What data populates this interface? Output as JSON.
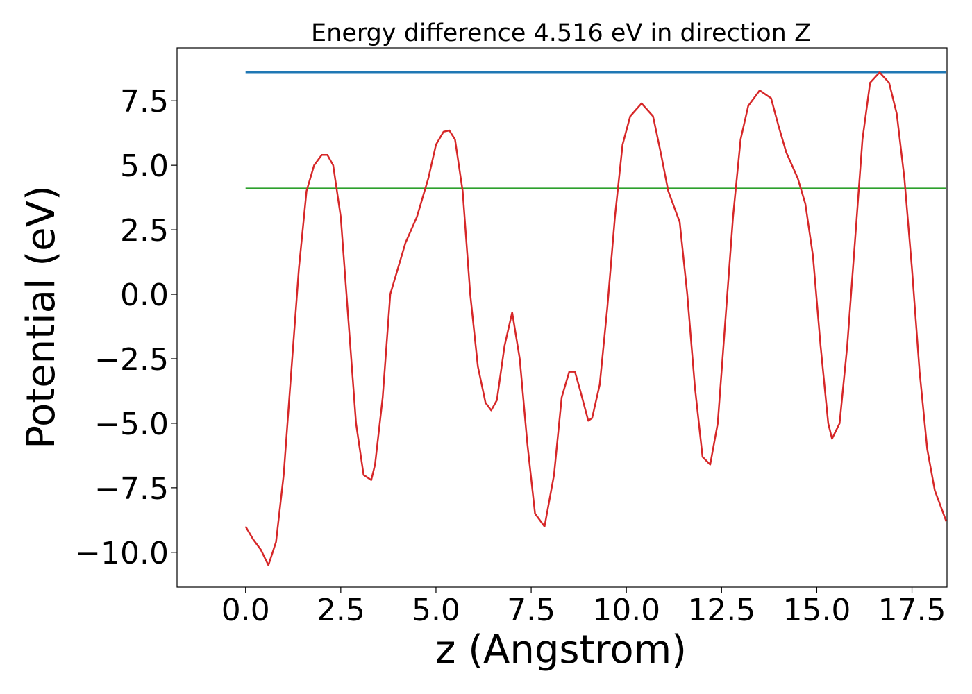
{
  "chart_data": {
    "type": "line",
    "title": "Energy difference 4.516 eV in direction Z",
    "xlabel": "z (Angstrom)",
    "ylabel": "Potential (eV)",
    "xlim": [
      -1.8,
      18.42
    ],
    "ylim": [
      -11.35,
      9.55
    ],
    "xticks": [
      0.0,
      2.5,
      5.0,
      7.5,
      10.0,
      12.5,
      15.0,
      17.5
    ],
    "xtick_labels": [
      "0.0",
      "2.5",
      "5.0",
      "7.5",
      "10.0",
      "12.5",
      "15.0",
      "17.5"
    ],
    "yticks": [
      7.5,
      5.0,
      2.5,
      0.0,
      -2.5,
      -5.0,
      -7.5,
      -10.0
    ],
    "ytick_labels": [
      "7.5",
      "5.0",
      "2.5",
      "0.0",
      "−2.5",
      "−5.0",
      "−7.5",
      "−10.0"
    ],
    "grid": false,
    "series": [
      {
        "color": "#1f77b4",
        "x": [
          0.0,
          18.4
        ],
        "y": [
          8.6,
          8.6
        ]
      },
      {
        "color": "#2ca02c",
        "x": [
          0.0,
          18.4
        ],
        "y": [
          4.1,
          4.1
        ]
      },
      {
        "color": "#d62728",
        "x": [
          0.0,
          0.2,
          0.4,
          0.6,
          0.8,
          1.0,
          1.2,
          1.4,
          1.6,
          1.8,
          2.0,
          2.15,
          2.3,
          2.5,
          2.7,
          2.9,
          3.1,
          3.3,
          3.4,
          3.6,
          3.8,
          4.0,
          4.2,
          4.5,
          4.8,
          5.0,
          5.2,
          5.35,
          5.5,
          5.7,
          5.9,
          6.1,
          6.3,
          6.45,
          6.6,
          6.8,
          7.0,
          7.2,
          7.4,
          7.6,
          7.85,
          8.1,
          8.3,
          8.5,
          8.65,
          8.8,
          9.0,
          9.1,
          9.3,
          9.5,
          9.7,
          9.9,
          10.1,
          10.4,
          10.7,
          10.9,
          11.1,
          11.4,
          11.6,
          11.8,
          12.0,
          12.2,
          12.4,
          12.6,
          12.8,
          13.0,
          13.2,
          13.5,
          13.8,
          14.0,
          14.2,
          14.5,
          14.7,
          14.9,
          15.1,
          15.3,
          15.4,
          15.6,
          15.8,
          16.0,
          16.2,
          16.4,
          16.65,
          16.9,
          17.1,
          17.3,
          17.5,
          17.7,
          17.9,
          18.1,
          18.4
        ],
        "y": [
          -9.0,
          -9.5,
          -9.9,
          -10.5,
          -9.6,
          -7.0,
          -3.0,
          1.0,
          4.0,
          5.0,
          5.4,
          5.4,
          5.0,
          3.0,
          -1.0,
          -5.0,
          -7.0,
          -7.2,
          -6.6,
          -4.0,
          0.0,
          1.0,
          2.0,
          3.0,
          4.5,
          5.8,
          6.3,
          6.35,
          6.0,
          4.0,
          0.0,
          -2.8,
          -4.2,
          -4.5,
          -4.1,
          -2.0,
          -0.7,
          -2.5,
          -5.8,
          -8.5,
          -9.0,
          -7.0,
          -4.0,
          -3.0,
          -3.0,
          -3.8,
          -4.9,
          -4.8,
          -3.5,
          -0.5,
          3.0,
          5.8,
          6.9,
          7.4,
          6.9,
          5.5,
          4.0,
          2.8,
          0.0,
          -3.6,
          -6.3,
          -6.6,
          -5.0,
          -1.0,
          3.0,
          6.0,
          7.3,
          7.9,
          7.6,
          6.5,
          5.5,
          4.5,
          3.5,
          1.5,
          -2.0,
          -5.0,
          -5.6,
          -5.0,
          -2.0,
          2.0,
          6.0,
          8.2,
          8.6,
          8.2,
          7.0,
          4.5,
          1.0,
          -3.0,
          -6.0,
          -7.6,
          -8.8
        ]
      }
    ]
  }
}
